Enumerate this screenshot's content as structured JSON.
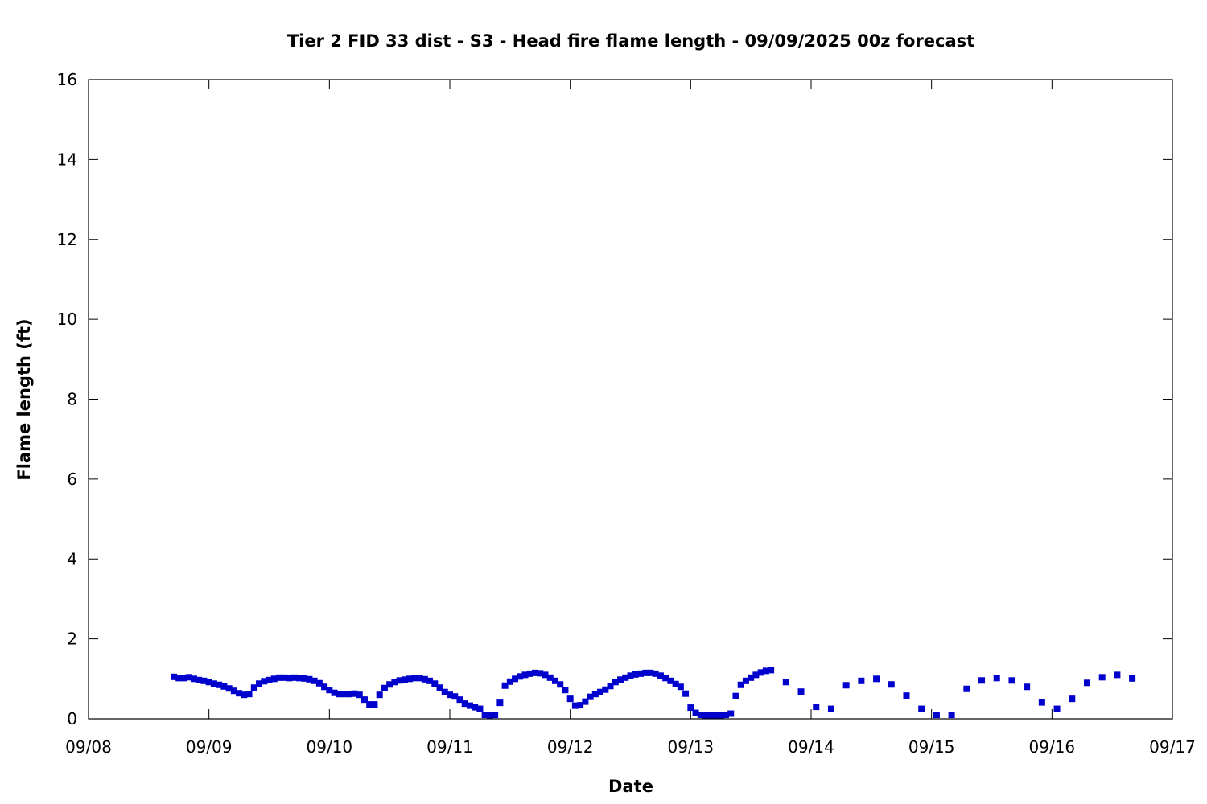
{
  "chart_data": {
    "type": "scatter",
    "title": "Tier 2 FID 33 dist - S3 - Head fire flame length - 09/09/2025 00z forecast",
    "xlabel": "Date",
    "ylabel": "Flame length (ft)",
    "x_range": [
      "2025-09-08T00:00",
      "2025-09-17T00:00"
    ],
    "ylim": [
      0,
      16
    ],
    "y_ticks": [
      0,
      2,
      4,
      6,
      8,
      10,
      12,
      14,
      16
    ],
    "x_ticks": [
      "2025-09-08T00:00",
      "2025-09-09T00:00",
      "2025-09-10T00:00",
      "2025-09-11T00:00",
      "2025-09-12T00:00",
      "2025-09-13T00:00",
      "2025-09-14T00:00",
      "2025-09-15T00:00",
      "2025-09-16T00:00",
      "2025-09-17T00:00"
    ],
    "x_tick_labels": [
      "09/08",
      "09/09",
      "09/10",
      "09/11",
      "09/12",
      "09/13",
      "09/14",
      "09/15",
      "09/16",
      "09/17"
    ],
    "grid": false,
    "legend": "none",
    "marker_color": "#0000cc",
    "marker": "square",
    "series": [
      {
        "points": [
          [
            "2025-09-08T17:00",
            1.05
          ],
          [
            "2025-09-08T18:00",
            1.02
          ],
          [
            "2025-09-08T19:00",
            1.02
          ],
          [
            "2025-09-08T20:00",
            1.04
          ],
          [
            "2025-09-08T21:00",
            1.0
          ],
          [
            "2025-09-08T22:00",
            0.97
          ],
          [
            "2025-09-08T23:00",
            0.95
          ],
          [
            "2025-09-09T00:00",
            0.92
          ],
          [
            "2025-09-09T01:00",
            0.88
          ],
          [
            "2025-09-09T02:00",
            0.85
          ],
          [
            "2025-09-09T03:00",
            0.81
          ],
          [
            "2025-09-09T04:00",
            0.76
          ],
          [
            "2025-09-09T05:00",
            0.7
          ],
          [
            "2025-09-09T06:00",
            0.64
          ],
          [
            "2025-09-09T07:00",
            0.6
          ],
          [
            "2025-09-09T08:00",
            0.62
          ],
          [
            "2025-09-09T09:00",
            0.78
          ],
          [
            "2025-09-09T10:00",
            0.88
          ],
          [
            "2025-09-09T11:00",
            0.94
          ],
          [
            "2025-09-09T12:00",
            0.97
          ],
          [
            "2025-09-09T13:00",
            1.0
          ],
          [
            "2025-09-09T14:00",
            1.03
          ],
          [
            "2025-09-09T15:00",
            1.03
          ],
          [
            "2025-09-09T16:00",
            1.02
          ],
          [
            "2025-09-09T17:00",
            1.03
          ],
          [
            "2025-09-09T18:00",
            1.02
          ],
          [
            "2025-09-09T19:00",
            1.01
          ],
          [
            "2025-09-09T20:00",
            0.99
          ],
          [
            "2025-09-09T21:00",
            0.95
          ],
          [
            "2025-09-09T22:00",
            0.89
          ],
          [
            "2025-09-09T23:00",
            0.8
          ],
          [
            "2025-09-10T00:00",
            0.72
          ],
          [
            "2025-09-10T01:00",
            0.65
          ],
          [
            "2025-09-10T02:00",
            0.62
          ],
          [
            "2025-09-10T03:00",
            0.62
          ],
          [
            "2025-09-10T04:00",
            0.62
          ],
          [
            "2025-09-10T05:00",
            0.63
          ],
          [
            "2025-09-10T06:00",
            0.6
          ],
          [
            "2025-09-10T07:00",
            0.48
          ],
          [
            "2025-09-10T08:00",
            0.36
          ],
          [
            "2025-09-10T09:00",
            0.36
          ],
          [
            "2025-09-10T10:00",
            0.6
          ],
          [
            "2025-09-10T11:00",
            0.77
          ],
          [
            "2025-09-10T12:00",
            0.86
          ],
          [
            "2025-09-10T13:00",
            0.92
          ],
          [
            "2025-09-10T14:00",
            0.96
          ],
          [
            "2025-09-10T15:00",
            0.98
          ],
          [
            "2025-09-10T16:00",
            1.0
          ],
          [
            "2025-09-10T17:00",
            1.02
          ],
          [
            "2025-09-10T18:00",
            1.02
          ],
          [
            "2025-09-10T19:00",
            0.99
          ],
          [
            "2025-09-10T20:00",
            0.95
          ],
          [
            "2025-09-10T21:00",
            0.88
          ],
          [
            "2025-09-10T22:00",
            0.78
          ],
          [
            "2025-09-10T23:00",
            0.67
          ],
          [
            "2025-09-11T00:00",
            0.6
          ],
          [
            "2025-09-11T01:00",
            0.56
          ],
          [
            "2025-09-11T02:00",
            0.48
          ],
          [
            "2025-09-11T03:00",
            0.38
          ],
          [
            "2025-09-11T04:00",
            0.33
          ],
          [
            "2025-09-11T05:00",
            0.29
          ],
          [
            "2025-09-11T06:00",
            0.25
          ],
          [
            "2025-09-11T07:00",
            0.1
          ],
          [
            "2025-09-11T08:00",
            0.08
          ],
          [
            "2025-09-11T09:00",
            0.1
          ],
          [
            "2025-09-11T10:00",
            0.4
          ],
          [
            "2025-09-11T11:00",
            0.83
          ],
          [
            "2025-09-11T12:00",
            0.93
          ],
          [
            "2025-09-11T13:00",
            1.0
          ],
          [
            "2025-09-11T14:00",
            1.06
          ],
          [
            "2025-09-11T15:00",
            1.1
          ],
          [
            "2025-09-11T16:00",
            1.13
          ],
          [
            "2025-09-11T17:00",
            1.15
          ],
          [
            "2025-09-11T18:00",
            1.14
          ],
          [
            "2025-09-11T19:00",
            1.1
          ],
          [
            "2025-09-11T20:00",
            1.03
          ],
          [
            "2025-09-11T21:00",
            0.95
          ],
          [
            "2025-09-11T22:00",
            0.86
          ],
          [
            "2025-09-11T23:00",
            0.72
          ],
          [
            "2025-09-12T00:00",
            0.5
          ],
          [
            "2025-09-12T01:00",
            0.33
          ],
          [
            "2025-09-12T02:00",
            0.34
          ],
          [
            "2025-09-12T03:00",
            0.43
          ],
          [
            "2025-09-12T04:00",
            0.55
          ],
          [
            "2025-09-12T05:00",
            0.62
          ],
          [
            "2025-09-12T06:00",
            0.67
          ],
          [
            "2025-09-12T07:00",
            0.73
          ],
          [
            "2025-09-12T08:00",
            0.82
          ],
          [
            "2025-09-12T09:00",
            0.92
          ],
          [
            "2025-09-12T10:00",
            0.98
          ],
          [
            "2025-09-12T11:00",
            1.03
          ],
          [
            "2025-09-12T12:00",
            1.08
          ],
          [
            "2025-09-12T13:00",
            1.11
          ],
          [
            "2025-09-12T14:00",
            1.13
          ],
          [
            "2025-09-12T15:00",
            1.15
          ],
          [
            "2025-09-12T16:00",
            1.15
          ],
          [
            "2025-09-12T17:00",
            1.13
          ],
          [
            "2025-09-12T18:00",
            1.08
          ],
          [
            "2025-09-12T19:00",
            1.02
          ],
          [
            "2025-09-12T20:00",
            0.95
          ],
          [
            "2025-09-12T21:00",
            0.87
          ],
          [
            "2025-09-12T22:00",
            0.8
          ],
          [
            "2025-09-12T23:00",
            0.63
          ],
          [
            "2025-09-13T00:00",
            0.28
          ],
          [
            "2025-09-13T01:00",
            0.15
          ],
          [
            "2025-09-13T02:00",
            0.1
          ],
          [
            "2025-09-13T03:00",
            0.08
          ],
          [
            "2025-09-13T04:00",
            0.08
          ],
          [
            "2025-09-13T05:00",
            0.08
          ],
          [
            "2025-09-13T06:00",
            0.08
          ],
          [
            "2025-09-13T07:00",
            0.1
          ],
          [
            "2025-09-13T08:00",
            0.13
          ],
          [
            "2025-09-13T09:00",
            0.57
          ],
          [
            "2025-09-13T10:00",
            0.85
          ],
          [
            "2025-09-13T11:00",
            0.95
          ],
          [
            "2025-09-13T12:00",
            1.03
          ],
          [
            "2025-09-13T13:00",
            1.1
          ],
          [
            "2025-09-13T14:00",
            1.16
          ],
          [
            "2025-09-13T15:00",
            1.2
          ],
          [
            "2025-09-13T16:00",
            1.22
          ],
          [
            "2025-09-13T19:00",
            0.92
          ],
          [
            "2025-09-13T22:00",
            0.68
          ],
          [
            "2025-09-14T01:00",
            0.3
          ],
          [
            "2025-09-14T04:00",
            0.25
          ],
          [
            "2025-09-14T07:00",
            0.84
          ],
          [
            "2025-09-14T10:00",
            0.95
          ],
          [
            "2025-09-14T13:00",
            1.0
          ],
          [
            "2025-09-14T16:00",
            0.86
          ],
          [
            "2025-09-14T19:00",
            0.58
          ],
          [
            "2025-09-14T22:00",
            0.25
          ],
          [
            "2025-09-15T01:00",
            0.1
          ],
          [
            "2025-09-15T04:00",
            0.1
          ],
          [
            "2025-09-15T07:00",
            0.75
          ],
          [
            "2025-09-15T10:00",
            0.96
          ],
          [
            "2025-09-15T13:00",
            1.02
          ],
          [
            "2025-09-15T16:00",
            0.96
          ],
          [
            "2025-09-15T19:00",
            0.8
          ],
          [
            "2025-09-15T22:00",
            0.41
          ],
          [
            "2025-09-16T01:00",
            0.25
          ],
          [
            "2025-09-16T04:00",
            0.5
          ],
          [
            "2025-09-16T07:00",
            0.9
          ],
          [
            "2025-09-16T10:00",
            1.04
          ],
          [
            "2025-09-16T13:00",
            1.1
          ],
          [
            "2025-09-16T16:00",
            1.01
          ]
        ]
      }
    ]
  }
}
